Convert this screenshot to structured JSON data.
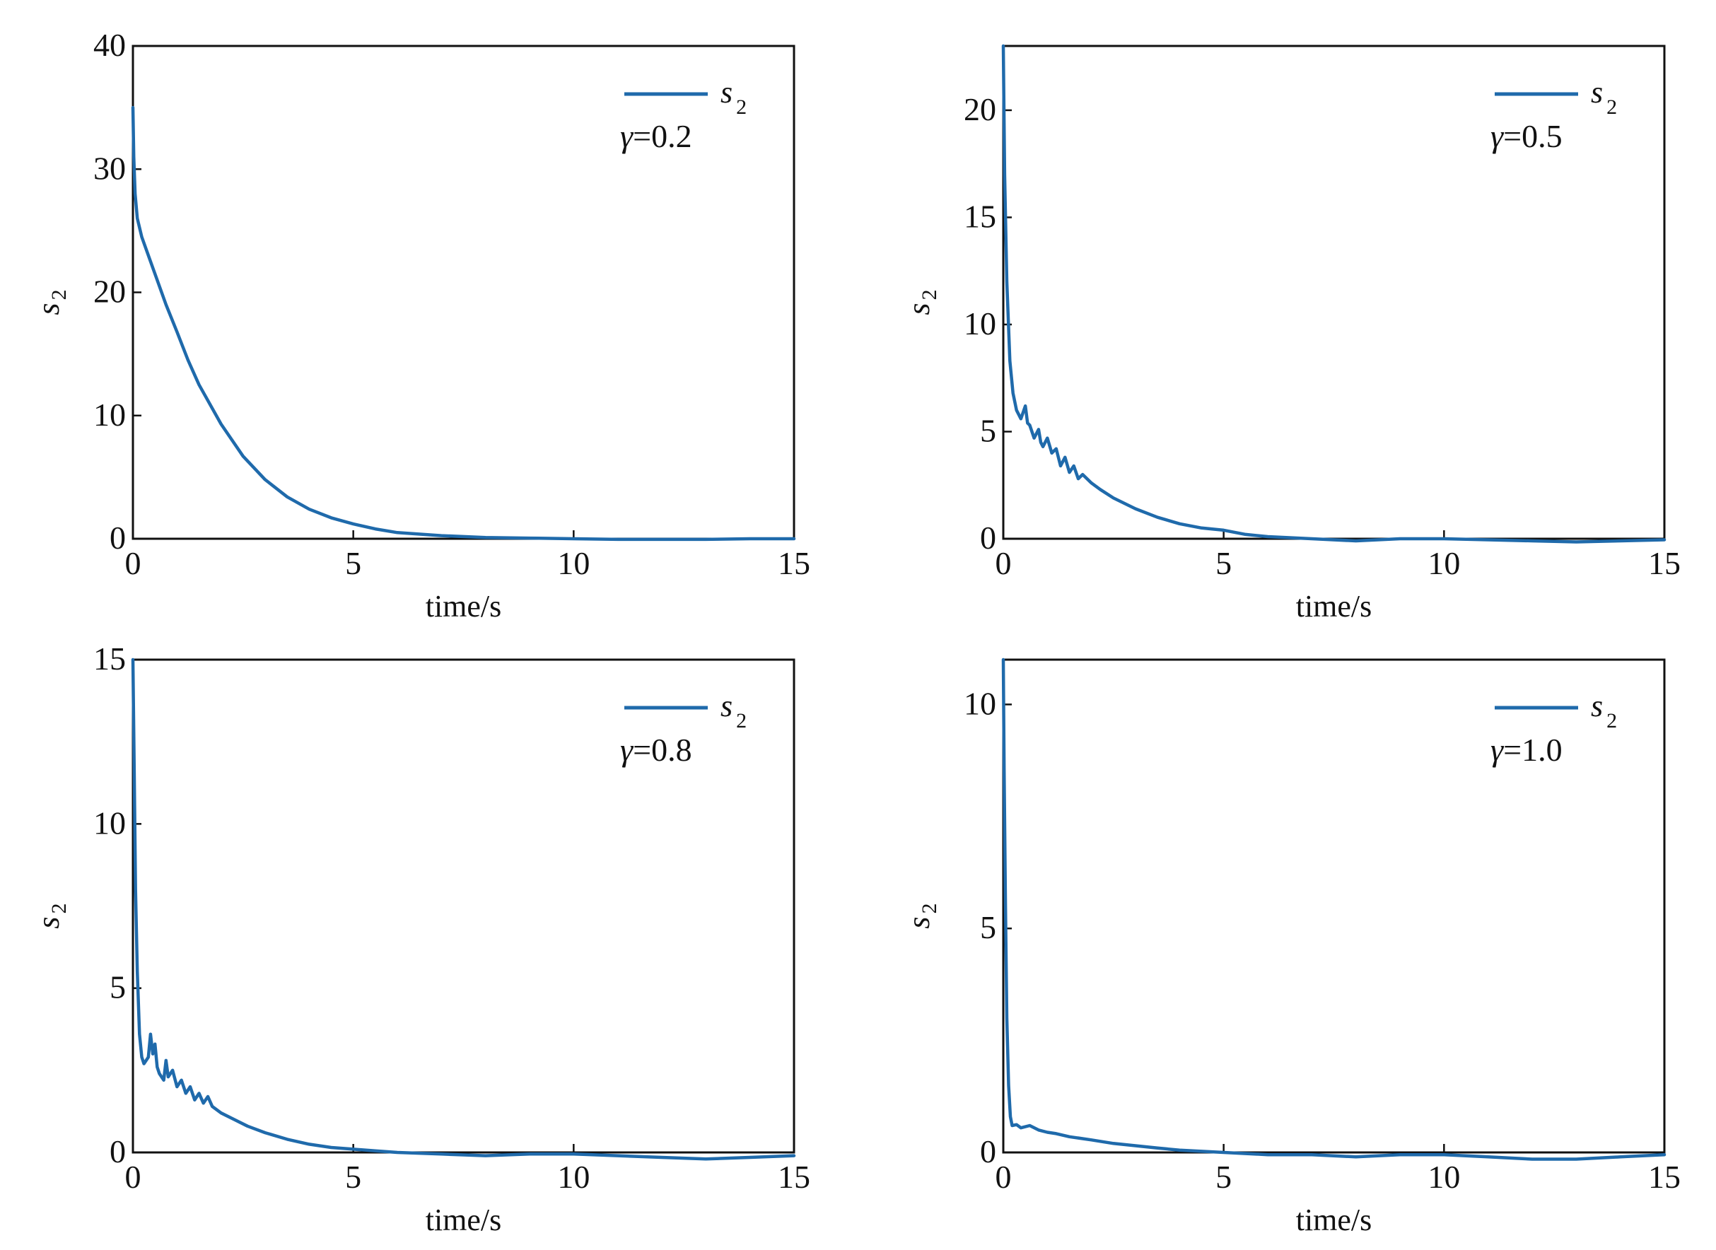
{
  "chart_data": [
    {
      "type": "line",
      "xlabel": "time/s",
      "ylabel": {
        "main": "s",
        "sub": "2"
      },
      "xlim": [
        0,
        15
      ],
      "ylim": [
        0,
        40
      ],
      "xticks": [
        0,
        5,
        10,
        15
      ],
      "yticks": [
        0,
        10,
        20,
        30,
        40
      ],
      "grid": false,
      "legend": {
        "position": "top-right",
        "entries": [
          {
            "main": "s",
            "sub": "2"
          }
        ]
      },
      "annotation": {
        "symbol": "γ",
        "text": "=0.2"
      },
      "color": "#1f6aab",
      "series": [
        {
          "x": [
            0,
            0.02,
            0.05,
            0.1,
            0.2,
            0.3,
            0.5,
            0.75,
            1,
            1.25,
            1.5,
            2,
            2.5,
            3,
            3.5,
            4,
            4.5,
            5,
            5.5,
            6,
            7,
            8,
            9,
            10,
            11,
            12,
            13,
            14,
            15
          ],
          "y": [
            35,
            31,
            28,
            26,
            24.5,
            23.5,
            21.5,
            19,
            16.8,
            14.5,
            12.5,
            9.3,
            6.7,
            4.8,
            3.4,
            2.4,
            1.7,
            1.2,
            0.8,
            0.5,
            0.25,
            0.1,
            0.05,
            0,
            -0.05,
            -0.05,
            -0.05,
            0,
            0
          ]
        }
      ]
    },
    {
      "type": "line",
      "xlabel": "time/s",
      "ylabel": {
        "main": "s",
        "sub": "2"
      },
      "xlim": [
        0,
        15
      ],
      "ylim": [
        0,
        23
      ],
      "xticks": [
        0,
        5,
        10,
        15
      ],
      "yticks": [
        0,
        5,
        10,
        15,
        20
      ],
      "grid": false,
      "legend": {
        "position": "top-right",
        "entries": [
          {
            "main": "s",
            "sub": "2"
          }
        ]
      },
      "annotation": {
        "symbol": "γ",
        "text": "=0.5"
      },
      "color": "#1f6aab",
      "series": [
        {
          "x": [
            0,
            0.03,
            0.08,
            0.15,
            0.22,
            0.3,
            0.4,
            0.5,
            0.55,
            0.6,
            0.7,
            0.8,
            0.85,
            0.9,
            1,
            1.1,
            1.2,
            1.3,
            1.4,
            1.5,
            1.6,
            1.7,
            1.8,
            2,
            2.2,
            2.5,
            3,
            3.5,
            4,
            4.5,
            5,
            5.5,
            6,
            7,
            8,
            9,
            10,
            11,
            12,
            13,
            14,
            15
          ],
          "y": [
            23,
            17,
            12,
            8.3,
            6.8,
            6.0,
            5.6,
            6.2,
            5.4,
            5.3,
            4.7,
            5.1,
            4.5,
            4.3,
            4.7,
            4.0,
            4.2,
            3.4,
            3.8,
            3.1,
            3.4,
            2.8,
            3.0,
            2.6,
            2.3,
            1.9,
            1.4,
            1.0,
            0.7,
            0.5,
            0.4,
            0.2,
            0.1,
            0,
            -0.1,
            0,
            0,
            -0.05,
            -0.1,
            -0.15,
            -0.1,
            -0.05
          ]
        }
      ]
    },
    {
      "type": "line",
      "xlabel": "time/s",
      "ylabel": {
        "main": "s",
        "sub": "2"
      },
      "xlim": [
        0,
        15
      ],
      "ylim": [
        0,
        15
      ],
      "xticks": [
        0,
        5,
        10,
        15
      ],
      "yticks": [
        0,
        5,
        10,
        15
      ],
      "grid": false,
      "legend": {
        "position": "top-right",
        "entries": [
          {
            "main": "s",
            "sub": "2"
          }
        ]
      },
      "annotation": {
        "symbol": "γ",
        "text": "=0.8"
      },
      "color": "#1f6aab",
      "series": [
        {
          "x": [
            0,
            0.03,
            0.06,
            0.1,
            0.15,
            0.2,
            0.25,
            0.3,
            0.35,
            0.4,
            0.45,
            0.5,
            0.55,
            0.6,
            0.7,
            0.75,
            0.8,
            0.9,
            1,
            1.1,
            1.2,
            1.3,
            1.4,
            1.5,
            1.6,
            1.7,
            1.8,
            2,
            2.3,
            2.6,
            3,
            3.5,
            4,
            4.5,
            5,
            5.5,
            6,
            7,
            8,
            9,
            10,
            11,
            12,
            13,
            14,
            15
          ],
          "y": [
            15,
            11.5,
            8,
            5.5,
            3.6,
            2.9,
            2.7,
            2.8,
            2.9,
            3.6,
            3.0,
            3.3,
            2.6,
            2.4,
            2.2,
            2.8,
            2.3,
            2.5,
            2.0,
            2.2,
            1.8,
            2.0,
            1.6,
            1.8,
            1.5,
            1.7,
            1.4,
            1.2,
            1.0,
            0.8,
            0.6,
            0.4,
            0.25,
            0.15,
            0.1,
            0.05,
            0,
            -0.05,
            -0.1,
            -0.05,
            -0.05,
            -0.1,
            -0.15,
            -0.2,
            -0.15,
            -0.1
          ]
        }
      ]
    },
    {
      "type": "line",
      "xlabel": "time/s",
      "ylabel": {
        "main": "s",
        "sub": "2"
      },
      "xlim": [
        0,
        15
      ],
      "ylim": [
        0,
        11
      ],
      "xticks": [
        0,
        5,
        10,
        15
      ],
      "yticks": [
        0,
        5,
        10
      ],
      "grid": false,
      "legend": {
        "position": "top-right",
        "entries": [
          {
            "main": "s",
            "sub": "2"
          }
        ]
      },
      "annotation": {
        "symbol": "γ",
        "text": "=1.0"
      },
      "color": "#1f6aab",
      "series": [
        {
          "x": [
            0,
            0.02,
            0.05,
            0.08,
            0.12,
            0.16,
            0.2,
            0.3,
            0.4,
            0.6,
            0.8,
            1,
            1.2,
            1.5,
            2,
            2.5,
            3,
            3.5,
            4,
            5,
            6,
            7,
            8,
            9,
            10,
            11,
            12,
            13,
            14,
            15
          ],
          "y": [
            11,
            8.5,
            5.5,
            3.0,
            1.5,
            0.8,
            0.6,
            0.62,
            0.55,
            0.6,
            0.5,
            0.45,
            0.42,
            0.35,
            0.28,
            0.2,
            0.15,
            0.1,
            0.05,
            0,
            -0.05,
            -0.05,
            -0.1,
            -0.05,
            -0.05,
            -0.1,
            -0.15,
            -0.15,
            -0.1,
            -0.05
          ]
        }
      ]
    }
  ]
}
